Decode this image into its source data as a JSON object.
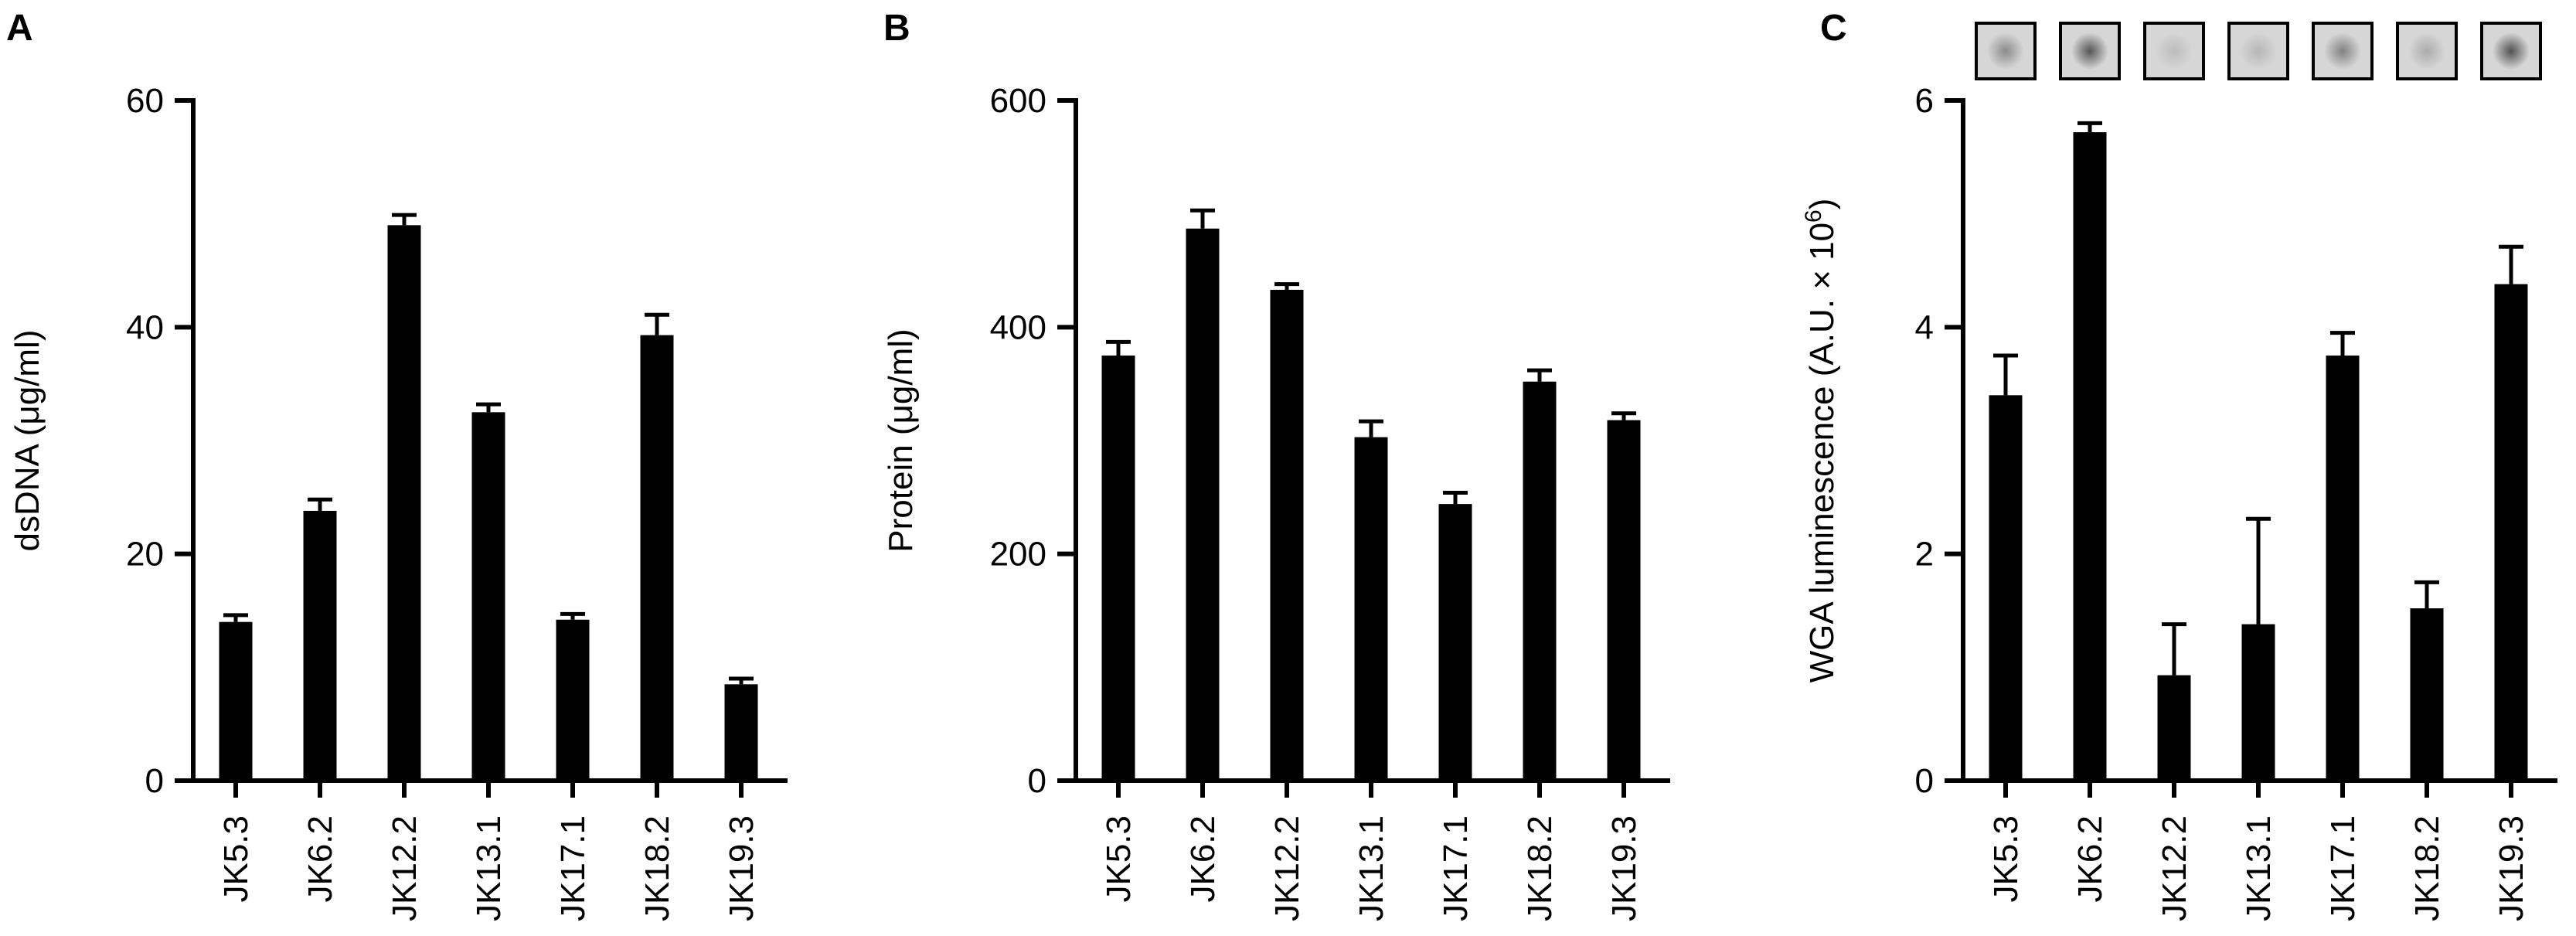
{
  "chart_data": [
    {
      "panel": "A",
      "type": "bar",
      "categories": [
        "JK5.3",
        "JK6.2",
        "JK12.2",
        "JK13.1",
        "JK17.1",
        "JK18.2",
        "JK19.3"
      ],
      "values": [
        14,
        23.8,
        49,
        32.5,
        14.2,
        39.3,
        8.5
      ],
      "errors": [
        0.6,
        1.0,
        0.9,
        0.7,
        0.5,
        1.8,
        0.5
      ],
      "ylabel": "dsDNA (μg/ml)",
      "ylim": [
        0,
        60
      ],
      "yticks": [
        0,
        20,
        40,
        60
      ],
      "grid": false
    },
    {
      "panel": "B",
      "type": "bar",
      "categories": [
        "JK5.3",
        "JK6.2",
        "JK12.2",
        "JK13.1",
        "JK17.1",
        "JK18.2",
        "JK19.3"
      ],
      "values": [
        375,
        487,
        433,
        303,
        244,
        352,
        318
      ],
      "errors": [
        12,
        16,
        5,
        14,
        10,
        10,
        6
      ],
      "ylabel": "Protein (μg/ml)",
      "ylim": [
        0,
        600
      ],
      "yticks": [
        0,
        200,
        400,
        600
      ],
      "grid": false
    },
    {
      "panel": "C",
      "type": "bar",
      "categories": [
        "JK5.3",
        "JK6.2",
        "JK12.2",
        "JK13.1",
        "JK17.1",
        "JK18.2",
        "JK19.3"
      ],
      "values": [
        3.4,
        5.72,
        0.93,
        1.38,
        3.75,
        1.52,
        4.38
      ],
      "errors": [
        0.35,
        0.08,
        0.45,
        0.93,
        0.2,
        0.23,
        0.33
      ],
      "ylabel_main": "WGA luminescence (A.U. × 10",
      "ylabel_sup": "6",
      "ylabel_close": ")",
      "ylim": [
        0,
        6
      ],
      "yticks": [
        0,
        2,
        4,
        6
      ],
      "grid": false,
      "dot_blot_intensity": [
        0.35,
        0.6,
        0.12,
        0.15,
        0.4,
        0.2,
        0.62
      ]
    }
  ]
}
